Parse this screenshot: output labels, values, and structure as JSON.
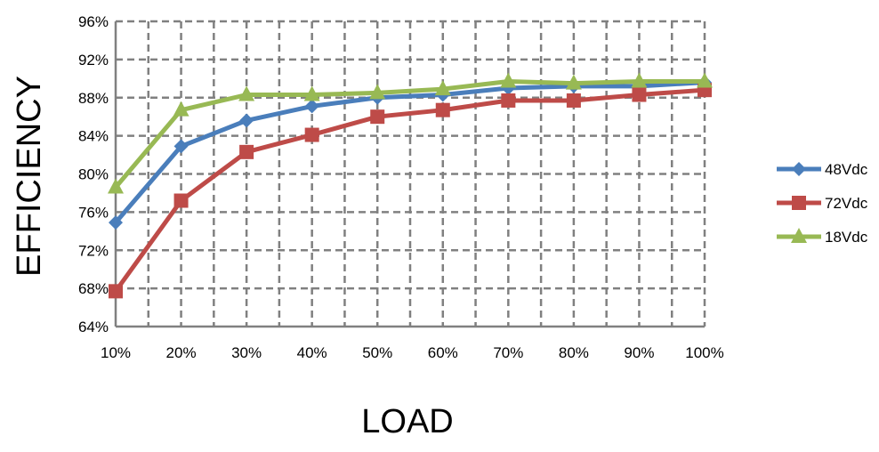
{
  "chart_data": {
    "type": "line",
    "title": "",
    "xlabel": "LOAD",
    "ylabel": "EFFICIENCY",
    "categories": [
      "10%",
      "20%",
      "30%",
      "40%",
      "50%",
      "60%",
      "70%",
      "80%",
      "90%",
      "100%"
    ],
    "x": [
      10,
      20,
      30,
      40,
      50,
      60,
      70,
      80,
      90,
      100
    ],
    "ylim": [
      64,
      96
    ],
    "yticks": [
      "64%",
      "68%",
      "72%",
      "76%",
      "80%",
      "84%",
      "88%",
      "92%",
      "96%"
    ],
    "ytick_values": [
      64,
      68,
      72,
      76,
      80,
      84,
      88,
      92,
      96
    ],
    "grid": true,
    "legend_position": "right",
    "series": [
      {
        "name": "48Vdc",
        "color": "#4a7ebb",
        "marker": "diamond",
        "values": [
          74.9,
          82.9,
          85.6,
          87.1,
          88.0,
          88.3,
          89.0,
          89.2,
          89.2,
          89.6
        ]
      },
      {
        "name": "72Vdc",
        "color": "#be4b48",
        "marker": "square",
        "values": [
          67.7,
          77.2,
          82.3,
          84.1,
          86.0,
          86.7,
          87.7,
          87.7,
          88.3,
          88.8
        ]
      },
      {
        "name": "18Vdc",
        "color": "#98b954",
        "marker": "triangle",
        "values": [
          78.6,
          86.7,
          88.3,
          88.3,
          88.5,
          88.9,
          89.7,
          89.5,
          89.7,
          89.7
        ]
      }
    ]
  }
}
